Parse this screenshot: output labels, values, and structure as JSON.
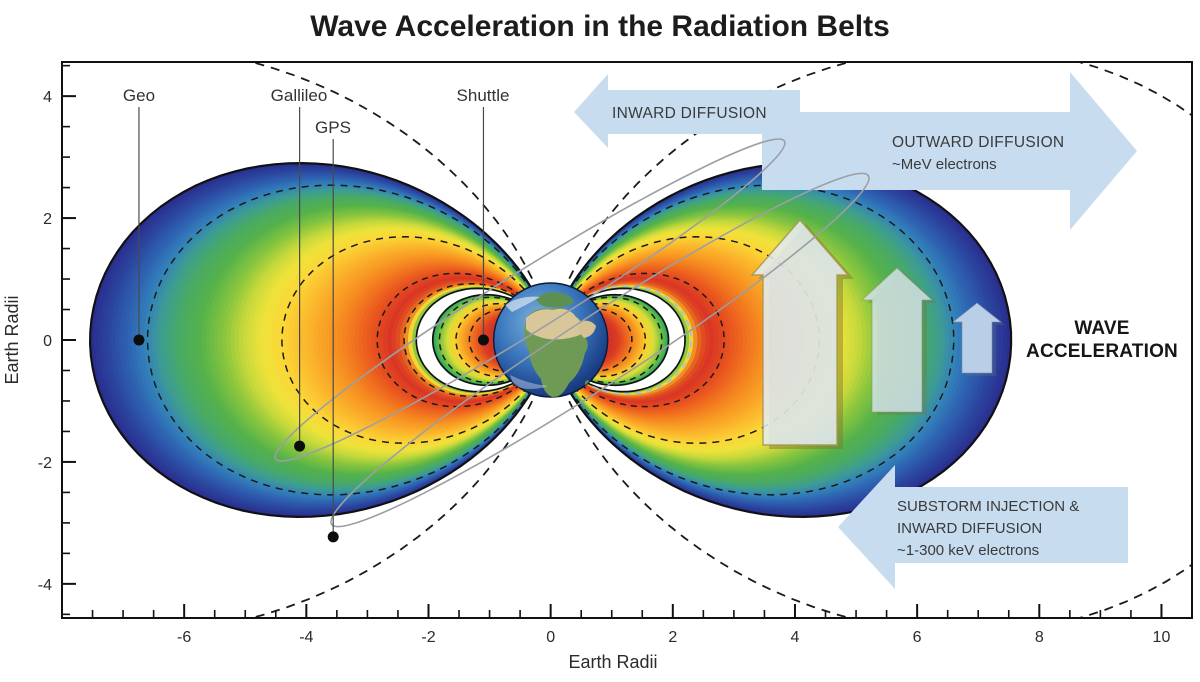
{
  "title": "Wave Acceleration in the Radiation Belts",
  "axes": {
    "x": {
      "label": "Earth Radii",
      "range": [
        -8,
        10.5
      ],
      "major_ticks": [
        -6,
        -4,
        -2,
        0,
        2,
        4,
        6,
        8,
        10
      ],
      "minor_step": 0.5
    },
    "y": {
      "label": "Earth Radii",
      "range": [
        -4.56,
        4.56
      ],
      "major_ticks": [
        -4,
        -2,
        0,
        2,
        4
      ],
      "minor_step": 0.5
    }
  },
  "satellites": [
    {
      "name": "Geo",
      "x_re": -6.74,
      "y_re": 0
    },
    {
      "name": "Gallileo",
      "x_re": -4.11,
      "y_re": -1.74
    },
    {
      "name": "GPS",
      "x_re": -3.56,
      "y_re": -3.23
    },
    {
      "name": "Shuttle",
      "x_re": -1.1,
      "y_re": 0
    }
  ],
  "annotations": {
    "inward": "INWARD DIFFUSION",
    "outward_line1": "OUTWARD DIFFUSION",
    "outward_line2": "~MeV electrons",
    "wave_line1": "WAVE",
    "wave_line2": "ACCELERATION",
    "substorm_line1": "SUBSTORM INJECTION &",
    "substorm_line2": "INWARD DIFFUSION",
    "substorm_line3": "~1-300 keV electrons"
  },
  "figure": {
    "type": "radiation-belt-diagram",
    "earth_radius_re": 0.95,
    "outer_belt": {
      "L_outer": 7.54,
      "L_inner": 2.2,
      "colormap": [
        [
          0,
          "#2a2f8f"
        ],
        [
          0.05,
          "#2b459f"
        ],
        [
          0.11,
          "#2e62b1"
        ],
        [
          0.16,
          "#3380bb"
        ],
        [
          0.21,
          "#3d9d92"
        ],
        [
          0.27,
          "#49ab62"
        ],
        [
          0.33,
          "#55b24b"
        ],
        [
          0.4,
          "#86c43f"
        ],
        [
          0.46,
          "#c4d83c"
        ],
        [
          0.52,
          "#efe23a"
        ],
        [
          0.58,
          "#fbd737"
        ],
        [
          0.66,
          "#fbb52c"
        ],
        [
          0.74,
          "#f79422"
        ],
        [
          0.8,
          "#f2741f"
        ],
        [
          0.86,
          "#e7511f"
        ],
        [
          0.915,
          "#d93425"
        ],
        [
          0.945,
          "#e2551f"
        ],
        [
          0.962,
          "#f08f22"
        ],
        [
          0.975,
          "#f3d833"
        ],
        [
          0.988,
          "#8cc742"
        ],
        [
          1,
          "#2fa95e"
        ]
      ]
    },
    "inner_belt": {
      "L_outer": 1.93,
      "L_inner": 1.02,
      "colormap": [
        [
          0,
          "#28a95c"
        ],
        [
          0.12,
          "#7fc342"
        ],
        [
          0.25,
          "#d8de38"
        ],
        [
          0.38,
          "#fbd02f"
        ],
        [
          0.55,
          "#f79b22"
        ],
        [
          0.72,
          "#ee6a1f"
        ],
        [
          0.88,
          "#dc3f24"
        ],
        [
          1,
          "#d23425"
        ]
      ]
    },
    "dashed_field_lines_L": [
      1.33,
      1.55,
      1.82,
      2.4,
      2.84,
      4.4,
      6.6,
      12.5
    ],
    "colors": {
      "arrow_fill": "#c8dcf0",
      "up_arrow_fill": "rgba(226,235,243,0.87)",
      "up_arrow_mid_fill": "rgba(214,228,236,0.82)",
      "up_arrow_small_fill": "#b9cfe7",
      "slot": "#ffffff",
      "dashed_line": "#1a1a1a",
      "slot_arc_blue": "#9dc2e2",
      "orbit_gray": "#9b9fa3",
      "outline": "#111111"
    }
  }
}
